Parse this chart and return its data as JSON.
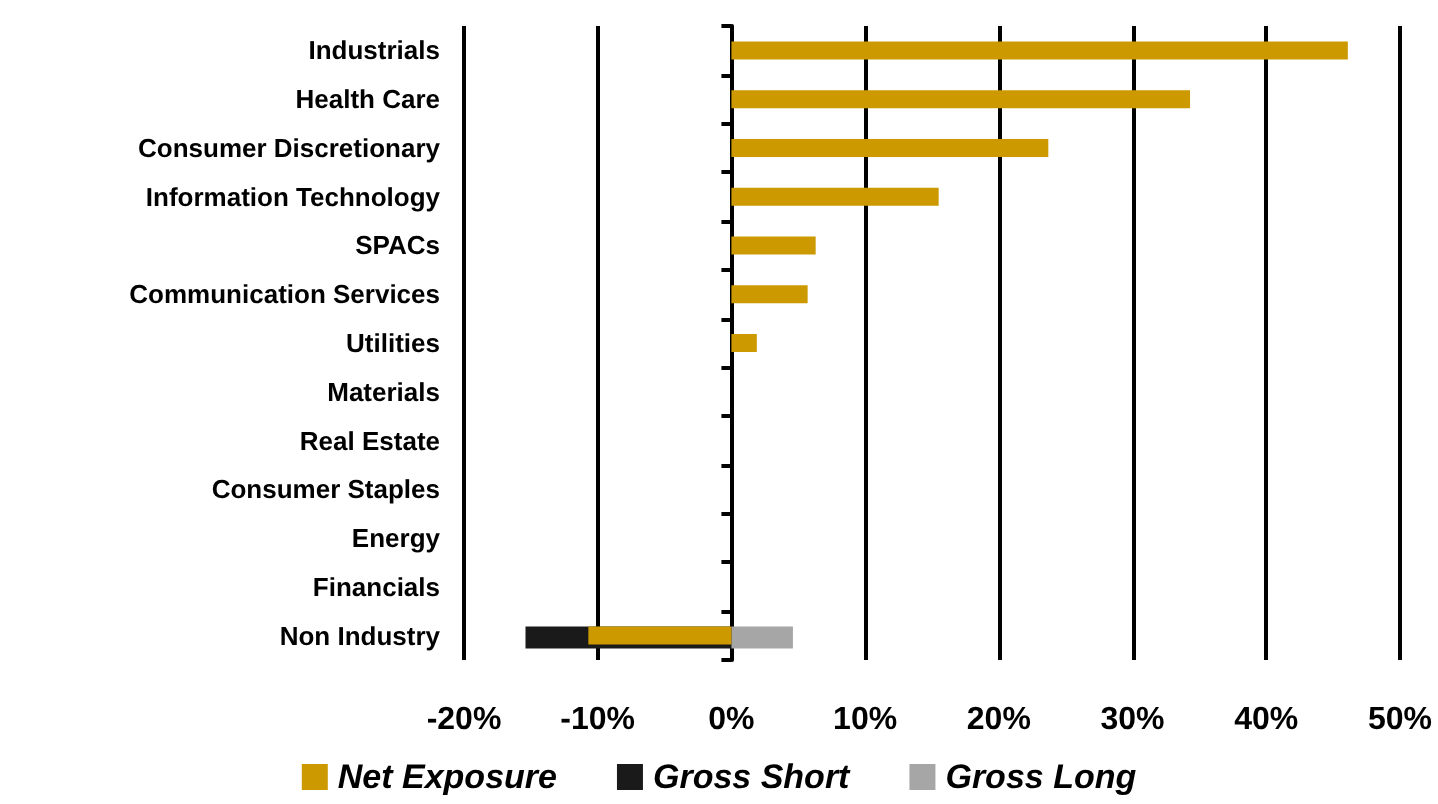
{
  "chart_data": {
    "type": "bar",
    "orientation": "horizontal",
    "categories": [
      "Industrials",
      "Health Care",
      "Consumer Discretionary",
      "Information Technology",
      "SPACs",
      "Communication Services",
      "Utilities",
      "Materials",
      "Real Estate",
      "Consumer Staples",
      "Energy",
      "Financials",
      "Non Industry"
    ],
    "series": [
      {
        "name": "Net Exposure",
        "color": "#cc9900",
        "values": [
          46.1,
          34.3,
          23.7,
          15.5,
          6.3,
          5.7,
          1.9,
          null,
          null,
          null,
          null,
          null,
          -10.7
        ]
      },
      {
        "name": "Gross Short",
        "color": "#1a1a1a",
        "values": [
          null,
          null,
          null,
          null,
          null,
          null,
          null,
          null,
          null,
          null,
          null,
          null,
          -15.4
        ]
      },
      {
        "name": "Gross Long",
        "color": "#a6a6a6",
        "values": [
          null,
          null,
          null,
          null,
          null,
          null,
          null,
          null,
          null,
          null,
          null,
          null,
          4.6
        ]
      }
    ],
    "xlim": [
      -20,
      50
    ],
    "xticks": [
      {
        "value": -20,
        "label": "-20%"
      },
      {
        "value": -10,
        "label": "-10%"
      },
      {
        "value": 0,
        "label": "0%"
      },
      {
        "value": 10,
        "label": "10%"
      },
      {
        "value": 20,
        "label": "20%"
      },
      {
        "value": 30,
        "label": "30%"
      },
      {
        "value": 40,
        "label": "40%"
      },
      {
        "value": 50,
        "label": "50%"
      }
    ],
    "grid": "x",
    "legend": "bottom"
  }
}
